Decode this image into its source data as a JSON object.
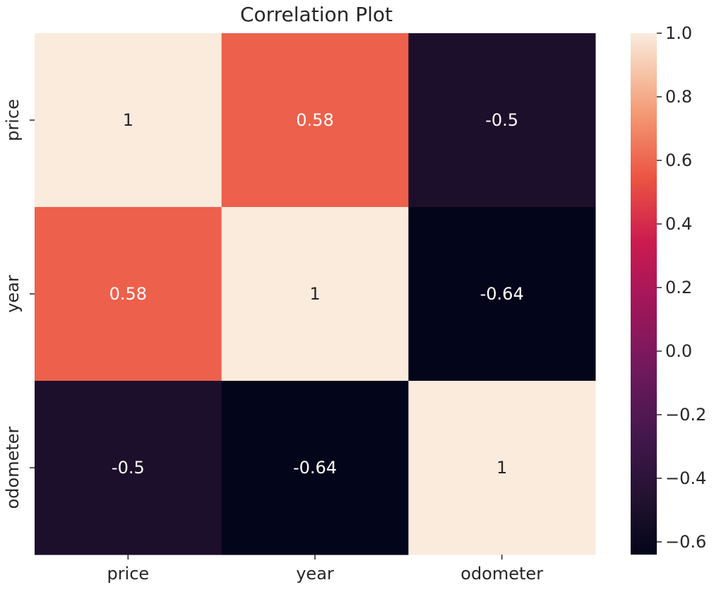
{
  "chart_data": {
    "type": "heatmap",
    "title": "Correlation Plot",
    "x_labels": [
      "price",
      "year",
      "odometer"
    ],
    "y_labels": [
      "price",
      "year",
      "odometer"
    ],
    "matrix": [
      [
        1,
        0.58,
        -0.5
      ],
      [
        0.58,
        1,
        -0.64
      ],
      [
        -0.5,
        -0.64,
        1
      ]
    ],
    "annotations": [
      [
        "1",
        "0.58",
        "-0.5"
      ],
      [
        "0.58",
        "1",
        "-0.64"
      ],
      [
        "-0.5",
        "-0.64",
        "1"
      ]
    ],
    "colorbar": {
      "colormap": "rocket",
      "vmin": -0.64,
      "vmax": 1.0,
      "ticks": [
        1.0,
        0.8,
        0.6,
        0.4,
        0.2,
        0.0,
        -0.2,
        -0.4,
        -0.6
      ],
      "tick_labels": [
        "1.0",
        "0.8",
        "0.6",
        "0.4",
        "0.2",
        "0.0",
        "−0.2",
        "−0.4",
        "−0.6"
      ]
    },
    "colors": {
      "text_light": "#ffffff",
      "text_dark": "#262626"
    }
  }
}
